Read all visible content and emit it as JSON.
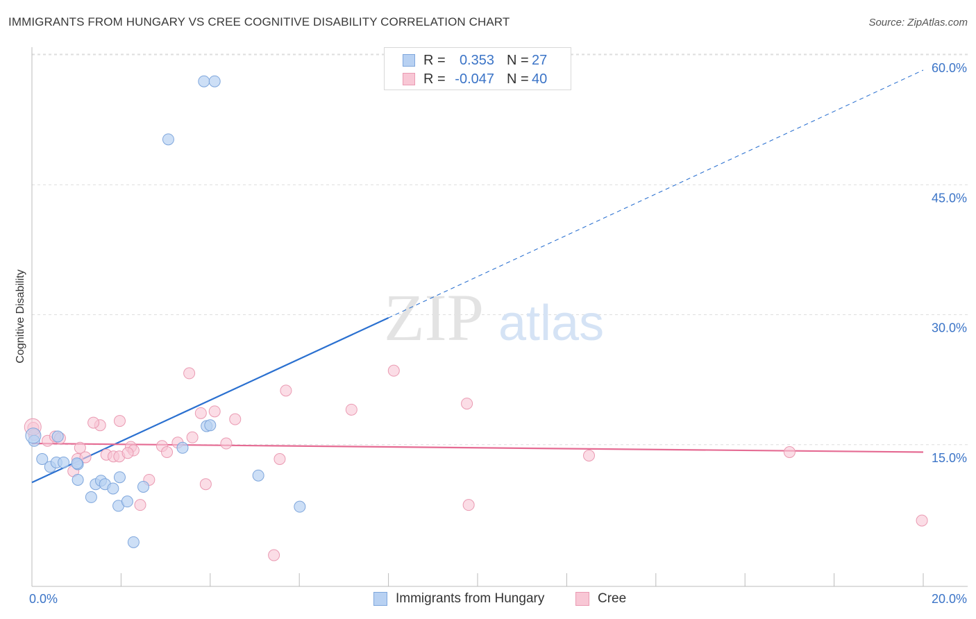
{
  "title": "IMMIGRANTS FROM HUNGARY VS CREE COGNITIVE DISABILITY CORRELATION CHART",
  "source": "Source: ZipAtlas.com",
  "watermark": {
    "zip": "ZIP",
    "atlas": "atlas"
  },
  "legend": {
    "rows": [
      {
        "r_label": "R =",
        "r_value": "0.353",
        "n_label": "N =",
        "n_value": "27"
      },
      {
        "r_label": "R =",
        "r_value": "-0.047",
        "n_label": "N =",
        "n_value": "40"
      }
    ]
  },
  "bottom_legend": {
    "hungary": "Immigrants from Hungary",
    "cree": "Cree"
  },
  "colors": {
    "hungary_fill": "#b8d1f2",
    "hungary_stroke": "#7ea6dc",
    "hungary_line": "#2a70d0",
    "cree_fill": "#f8c7d5",
    "cree_stroke": "#ea9ab2",
    "cree_line": "#e56b93",
    "grid": "#dddddd",
    "tick_text": "#3b74c7"
  },
  "chart_data": {
    "type": "scatter",
    "title": "IMMIGRANTS FROM HUNGARY VS CREE COGNITIVE DISABILITY CORRELATION CHART",
    "xlabel": "",
    "ylabel": "Cognitive Disability",
    "xlim": [
      0,
      20
    ],
    "ylim": [
      0,
      60
    ],
    "x_tick_labels": [
      "0.0%",
      "20.0%"
    ],
    "y_ticks": [
      15,
      30,
      45,
      60
    ],
    "y_tick_labels": [
      "15.0%",
      "30.0%",
      "45.0%",
      "60.0%"
    ],
    "series": [
      {
        "name": "Immigrants from Hungary",
        "r": 0.353,
        "n": 27,
        "points": [
          [
            0.05,
            16.8
          ],
          [
            0.23,
            14.7
          ],
          [
            0.41,
            13.8
          ],
          [
            0.58,
            17.3
          ],
          [
            0.55,
            14.3
          ],
          [
            0.71,
            14.3
          ],
          [
            1.03,
            14.1
          ],
          [
            1.03,
            12.3
          ],
          [
            1.01,
            14.2
          ],
          [
            1.33,
            10.3
          ],
          [
            1.43,
            11.8
          ],
          [
            1.55,
            12.2
          ],
          [
            1.64,
            11.8
          ],
          [
            1.94,
            9.3
          ],
          [
            1.82,
            11.3
          ],
          [
            1.97,
            12.6
          ],
          [
            2.14,
            9.8
          ],
          [
            2.28,
            5.1
          ],
          [
            2.5,
            11.5
          ],
          [
            3.38,
            16.0
          ],
          [
            3.06,
            51.6
          ],
          [
            3.86,
            58.3
          ],
          [
            4.1,
            58.3
          ],
          [
            3.92,
            18.5
          ],
          [
            5.08,
            12.8
          ],
          [
            6.01,
            9.2
          ],
          [
            4.0,
            18.6
          ]
        ],
        "trend": {
          "x1": 0.0,
          "y1": 12.0,
          "x2": 8.0,
          "y2": 31.0,
          "dash_x2": 20.0,
          "dash_y2": 59.6
        }
      },
      {
        "name": "Cree",
        "r": -0.047,
        "n": 40,
        "points": [
          [
            0.03,
            18.3
          ],
          [
            0.05,
            17.5
          ],
          [
            0.35,
            16.8
          ],
          [
            0.52,
            17.3
          ],
          [
            0.63,
            17.1
          ],
          [
            0.93,
            13.3
          ],
          [
            1.02,
            14.7
          ],
          [
            1.08,
            16.0
          ],
          [
            1.2,
            14.9
          ],
          [
            1.53,
            18.6
          ],
          [
            1.38,
            18.9
          ],
          [
            1.67,
            15.2
          ],
          [
            1.83,
            15.0
          ],
          [
            1.96,
            15.0
          ],
          [
            1.97,
            19.1
          ],
          [
            2.22,
            16.1
          ],
          [
            2.28,
            15.7
          ],
          [
            2.15,
            15.4
          ],
          [
            2.43,
            9.4
          ],
          [
            2.63,
            12.3
          ],
          [
            2.92,
            16.2
          ],
          [
            3.03,
            15.5
          ],
          [
            3.27,
            16.6
          ],
          [
            3.6,
            17.2
          ],
          [
            3.79,
            20.0
          ],
          [
            3.53,
            24.6
          ],
          [
            3.9,
            11.8
          ],
          [
            4.1,
            20.2
          ],
          [
            4.36,
            16.5
          ],
          [
            4.56,
            19.3
          ],
          [
            5.56,
            14.7
          ],
          [
            5.43,
            3.6
          ],
          [
            5.7,
            22.6
          ],
          [
            7.17,
            20.4
          ],
          [
            8.12,
            24.9
          ],
          [
            9.76,
            21.1
          ],
          [
            9.8,
            9.4
          ],
          [
            12.5,
            15.1
          ],
          [
            17.0,
            15.5
          ],
          [
            19.97,
            7.6
          ]
        ],
        "trend": {
          "x1": 0.0,
          "y1": 16.5,
          "x2": 20.0,
          "y2": 15.5
        }
      }
    ]
  }
}
